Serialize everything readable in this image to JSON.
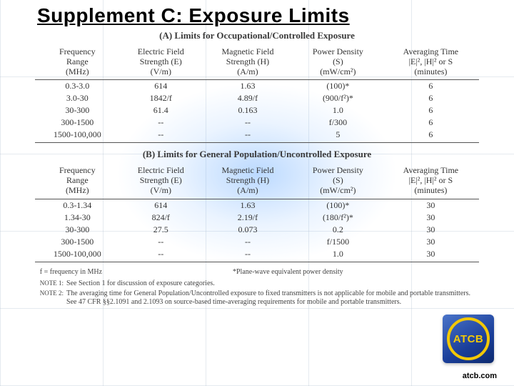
{
  "title": "Supplement C: Exposure Limits",
  "tableA": {
    "caption": "(A)  Limits for Occupational/Controlled Exposure",
    "columns": {
      "c0": {
        "l1": "Frequency",
        "l2": "Range",
        "l3": "(MHz)"
      },
      "c1": {
        "l1": "Electric Field",
        "l2": "Strength  (E)",
        "l3": "(V/m)"
      },
      "c2": {
        "l1": "Magnetic Field",
        "l2": "Strength  (H)",
        "l3": "(A/m)"
      },
      "c3": {
        "l1": "Power Density",
        "l2": "(S)",
        "l3": "(mW/cm²)"
      },
      "c4": {
        "l1": "Averaging Time",
        "l2": "|E|², |H|² or S",
        "l3": "(minutes)"
      }
    },
    "rows": [
      {
        "c0": "0.3-3.0",
        "c1": "614",
        "c2": "1.63",
        "c3": "(100)*",
        "c4": "6"
      },
      {
        "c0": "3.0-30",
        "c1": "1842/f",
        "c2": "4.89/f",
        "c3": "(900/f²)*",
        "c4": "6"
      },
      {
        "c0": "30-300",
        "c1": "61.4",
        "c2": "0.163",
        "c3": "1.0",
        "c4": "6"
      },
      {
        "c0": "300-1500",
        "c1": "--",
        "c2": "--",
        "c3": "f/300",
        "c4": "6"
      },
      {
        "c0": "1500-100,000",
        "c1": "--",
        "c2": "--",
        "c3": "5",
        "c4": "6"
      }
    ]
  },
  "tableB": {
    "caption": "(B)  Limits for General Population/Uncontrolled Exposure",
    "columns": {
      "c0": {
        "l1": "Frequency",
        "l2": "Range",
        "l3": "(MHz)"
      },
      "c1": {
        "l1": "Electric Field",
        "l2": "Strength  (E)",
        "l3": "(V/m)"
      },
      "c2": {
        "l1": "Magnetic Field",
        "l2": "Strength  (H)",
        "l3": "(A/m)"
      },
      "c3": {
        "l1": "Power Density",
        "l2": "(S)",
        "l3": "(mW/cm²)"
      },
      "c4": {
        "l1": "Averaging Time",
        "l2": "|E|², |H|² or S",
        "l3": "(minutes)"
      }
    },
    "rows": [
      {
        "c0": "0.3-1.34",
        "c1": "614",
        "c2": "1.63",
        "c3": "(100)*",
        "c4": "30"
      },
      {
        "c0": "1.34-30",
        "c1": "824/f",
        "c2": "2.19/f",
        "c3": "(180/f²)*",
        "c4": "30"
      },
      {
        "c0": "30-300",
        "c1": "27.5",
        "c2": "0.073",
        "c3": "0.2",
        "c4": "30"
      },
      {
        "c0": "300-1500",
        "c1": "--",
        "c2": "--",
        "c3": "f/1500",
        "c4": "30"
      },
      {
        "c0": "1500-100,000",
        "c1": "--",
        "c2": "--",
        "c3": "1.0",
        "c4": "30"
      }
    ]
  },
  "notes": {
    "f": "f = frequency in MHz",
    "star": "*Plane-wave equivalent power density",
    "n1label": "NOTE 1:",
    "n1": "See Section 1 for discussion of exposure categories.",
    "n2label": "NOTE 2:",
    "n2": "The averaging time for General Population/Uncontrolled exposure to fixed transmitters is not applicable for mobile and portable transmitters.  See 47 CFR §§2.1091 and 2.1093 on source-based time-averaging requirements for mobile and portable transmitters."
  },
  "logo": {
    "text": "ATCB"
  },
  "footer": {
    "url": "atcb.com"
  },
  "colors": {
    "logo_bg_start": "#4a74c9",
    "logo_bg_end": "#0d2a6e",
    "logo_ring": "#f2c807",
    "grid_line": "#b4c3d2",
    "glow": "#78b4ff"
  }
}
